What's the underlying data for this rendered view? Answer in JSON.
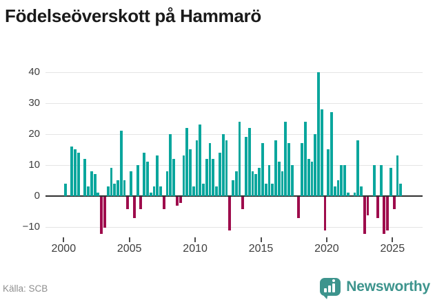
{
  "title": "Födelseöverskott på Hammarö",
  "source": {
    "label": "Källa: SCB"
  },
  "branding": {
    "name": "Newsworthy",
    "color": "#3d948d",
    "icon": "speech-bubble-bar-chart"
  },
  "colors": {
    "positive_bar": "#0aa69d",
    "negative_bar": "#9e0c4c",
    "grid": "#e4e4e4",
    "zero_line": "#2e2e2e",
    "axis_text": "#3d3d3d",
    "title_text": "#1a1a1a",
    "source_text": "#8e8e8e"
  },
  "chart_data": {
    "type": "bar",
    "title": "Födelseöverskott på Hammarö",
    "xlabel": "",
    "ylabel": "",
    "period": "quarterly",
    "start": "2000Q1",
    "end": "2025Q3",
    "x_tick_labels": [
      "2000",
      "2005",
      "2010",
      "2015",
      "2020",
      "2025"
    ],
    "y_ticks": [
      40,
      30,
      20,
      10,
      0,
      -10
    ],
    "ylim": [
      -14,
      42
    ],
    "grid": true,
    "legend": "none",
    "series": [
      {
        "name": "Födelseöverskott",
        "values": [
          4,
          0,
          16,
          15,
          14,
          0,
          12,
          3,
          8,
          7,
          1,
          -12,
          -10,
          3,
          9,
          4,
          5,
          21,
          5,
          -4,
          8,
          -7,
          10,
          -4,
          14,
          11,
          1,
          3,
          13,
          3,
          -4,
          8,
          20,
          12,
          -3,
          -2,
          13,
          22,
          15,
          3,
          18,
          23,
          4,
          12,
          17,
          12,
          3,
          14,
          20,
          18,
          -11,
          5,
          8,
          24,
          -4,
          19,
          22,
          8,
          7,
          9,
          17,
          4,
          10,
          4,
          18,
          11,
          8,
          24,
          17,
          10,
          0,
          -7,
          17,
          24,
          12,
          11,
          20,
          40,
          28,
          -11,
          15,
          27,
          3,
          5,
          10,
          10,
          1,
          0,
          1,
          18,
          3,
          -12,
          -6,
          0,
          10,
          -7,
          10,
          -12,
          -11,
          9,
          -4,
          13,
          4
        ]
      }
    ]
  }
}
